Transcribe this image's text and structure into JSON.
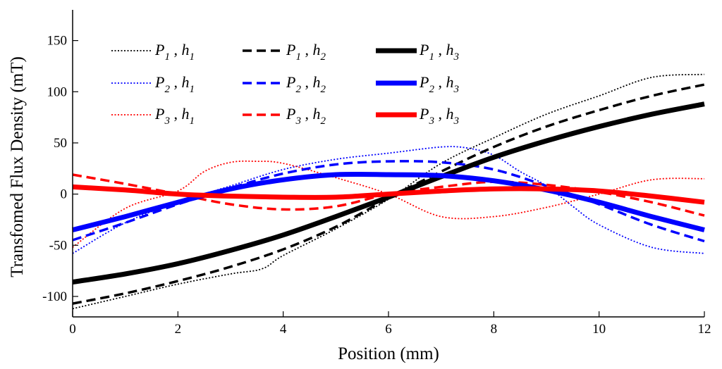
{
  "chart_data": {
    "type": "line",
    "title": "",
    "xlabel": "Position (mm)",
    "ylabel": "Transfomed Flux Density (mT)",
    "xlim": [
      0,
      12
    ],
    "ylim": [
      -120,
      180
    ],
    "xticks": [
      0,
      2,
      4,
      6,
      8,
      10,
      12
    ],
    "yticks": [
      -100,
      -50,
      0,
      50,
      100,
      150
    ],
    "grid": false,
    "legend_position": "top-left",
    "series": [
      {
        "name": "P1, h1",
        "p": "1",
        "h": "1",
        "color": "#000000",
        "style": "dotted",
        "x": [
          0,
          1,
          2,
          3,
          3.6,
          4,
          5,
          6,
          7,
          8,
          9,
          10,
          11,
          12
        ],
        "y": [
          -112,
          -100,
          -88,
          -78,
          -73,
          -60,
          -34,
          -5,
          30,
          55,
          78,
          96,
          114,
          117
        ]
      },
      {
        "name": "P1, h2",
        "p": "1",
        "h": "2",
        "color": "#000000",
        "style": "dashed",
        "x": [
          0,
          1,
          2,
          3,
          4,
          5,
          6,
          7,
          8,
          9,
          10,
          11,
          12
        ],
        "y": [
          -107,
          -97,
          -85,
          -71,
          -54,
          -32,
          -4,
          22,
          46,
          66,
          82,
          96,
          107
        ]
      },
      {
        "name": "P1, h3",
        "p": "1",
        "h": "3",
        "color": "#000000",
        "style": "solid",
        "x": [
          0,
          1,
          2,
          3,
          4,
          5,
          6,
          7,
          8,
          9,
          10,
          11,
          12
        ],
        "y": [
          -86,
          -78,
          -68,
          -55,
          -40,
          -22,
          -3,
          17,
          36,
          52,
          66,
          78,
          88
        ]
      },
      {
        "name": "P2, h1",
        "p": "2",
        "h": "1",
        "color": "#0000ff",
        "style": "dotted",
        "x": [
          0,
          1,
          2,
          3,
          4,
          5,
          6,
          7,
          7.5,
          8,
          8.5,
          9,
          9.5,
          10,
          11,
          12
        ],
        "y": [
          -58,
          -28,
          -8,
          8,
          24,
          34,
          40,
          46,
          45,
          38,
          22,
          8,
          -12,
          -30,
          -52,
          -58
        ]
      },
      {
        "name": "P2, h2",
        "p": "2",
        "h": "2",
        "color": "#0000ff",
        "style": "dashed",
        "x": [
          0,
          1,
          2,
          3,
          4,
          5,
          6,
          7,
          8,
          9,
          10,
          11,
          12
        ],
        "y": [
          -45,
          -28,
          -10,
          6,
          20,
          29,
          32,
          31,
          24,
          8,
          -10,
          -30,
          -46
        ]
      },
      {
        "name": "P2, h3",
        "p": "2",
        "h": "3",
        "color": "#0000ff",
        "style": "solid",
        "x": [
          0,
          1,
          2,
          3,
          4,
          5,
          6,
          7,
          8,
          9,
          10,
          11,
          12
        ],
        "y": [
          -35,
          -22,
          -8,
          5,
          14,
          19,
          19,
          18,
          13,
          4,
          -8,
          -22,
          -35
        ]
      },
      {
        "name": "P3, h1",
        "p": "3",
        "h": "1",
        "color": "#ff0000",
        "style": "dotted",
        "x": [
          0,
          1,
          2,
          2.5,
          3,
          3.5,
          4,
          5,
          6,
          7,
          8,
          9,
          10,
          11,
          12
        ],
        "y": [
          -52,
          -14,
          3,
          22,
          31,
          32,
          30,
          16,
          0,
          -22,
          -22,
          -13,
          0,
          14,
          15
        ]
      },
      {
        "name": "P3, h2",
        "p": "3",
        "h": "2",
        "color": "#ff0000",
        "style": "dashed",
        "x": [
          0,
          1,
          2,
          3,
          4,
          5,
          6,
          7,
          8,
          9,
          10,
          11,
          12
        ],
        "y": [
          19,
          10,
          0,
          -10,
          -15,
          -12,
          0,
          7,
          12,
          9,
          2,
          -8,
          -21
        ]
      },
      {
        "name": "P3, h3",
        "p": "3",
        "h": "3",
        "color": "#ff0000",
        "style": "solid",
        "x": [
          0,
          1,
          2,
          3,
          4,
          5,
          6,
          7,
          8,
          9,
          10,
          11,
          12
        ],
        "y": [
          7,
          4,
          0,
          -2,
          -3,
          -3,
          0,
          3,
          5,
          5,
          3,
          -2,
          -8
        ]
      }
    ]
  }
}
